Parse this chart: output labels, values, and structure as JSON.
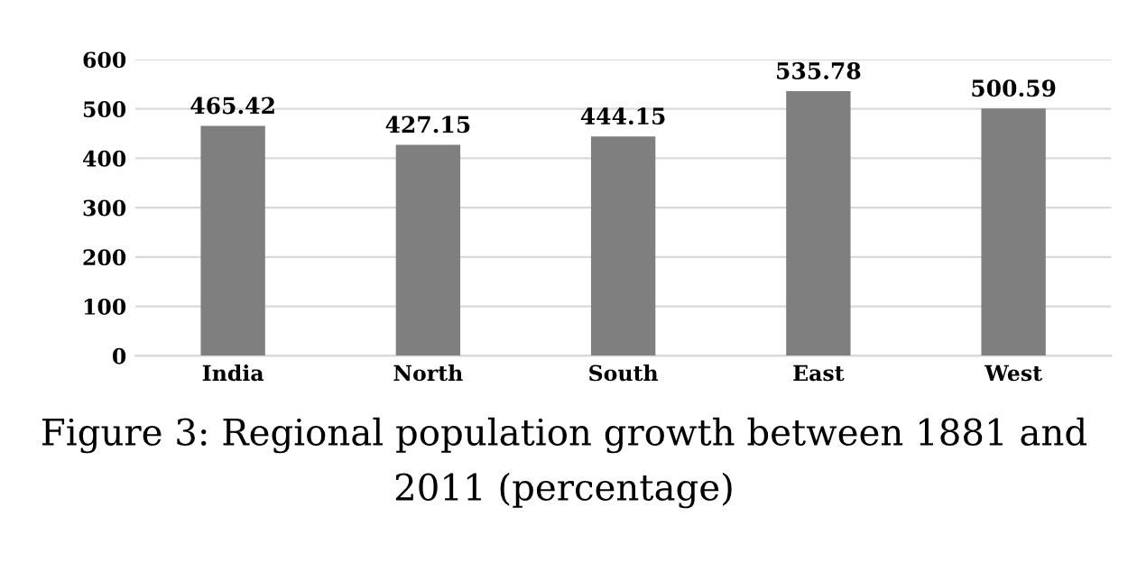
{
  "chart_data": {
    "type": "bar",
    "categories": [
      "India",
      "North",
      "South",
      "East",
      "West"
    ],
    "values": [
      465.42,
      427.15,
      444.15,
      535.78,
      500.59
    ],
    "color": "#7f7f7f",
    "data_labels": true,
    "ylim": [
      0,
      600
    ],
    "yticks": [
      0,
      100,
      200,
      300,
      400,
      500,
      600
    ],
    "grid": "y",
    "legend": false,
    "annotations": [
      "Figure 3: Regional population growth between 1881 and 2011 (percentage)"
    ]
  }
}
